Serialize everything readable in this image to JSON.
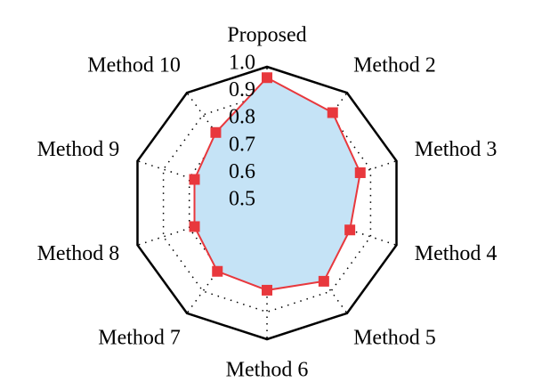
{
  "chart_data": {
    "type": "radar",
    "categories": [
      "Proposed",
      "Method 2",
      "Method 3",
      "Method 4",
      "Method 5",
      "Method 6",
      "Method 7",
      "Method 8",
      "Method 9",
      "Method 10"
    ],
    "series": [
      {
        "name": "Proposed",
        "color": "#e8383d",
        "fill": "#c5e3f6",
        "values": [
          0.96,
          0.91,
          0.86,
          0.82,
          0.855,
          0.82,
          0.81,
          0.78,
          0.78,
          0.82
        ]
      }
    ],
    "ylim": [
      0.5,
      1.0
    ],
    "yticks": [
      0.5,
      0.6,
      0.7,
      0.8,
      0.9,
      {
        "value": 1,
        "label": "1.0"
      }
    ],
    "grid": true
  }
}
